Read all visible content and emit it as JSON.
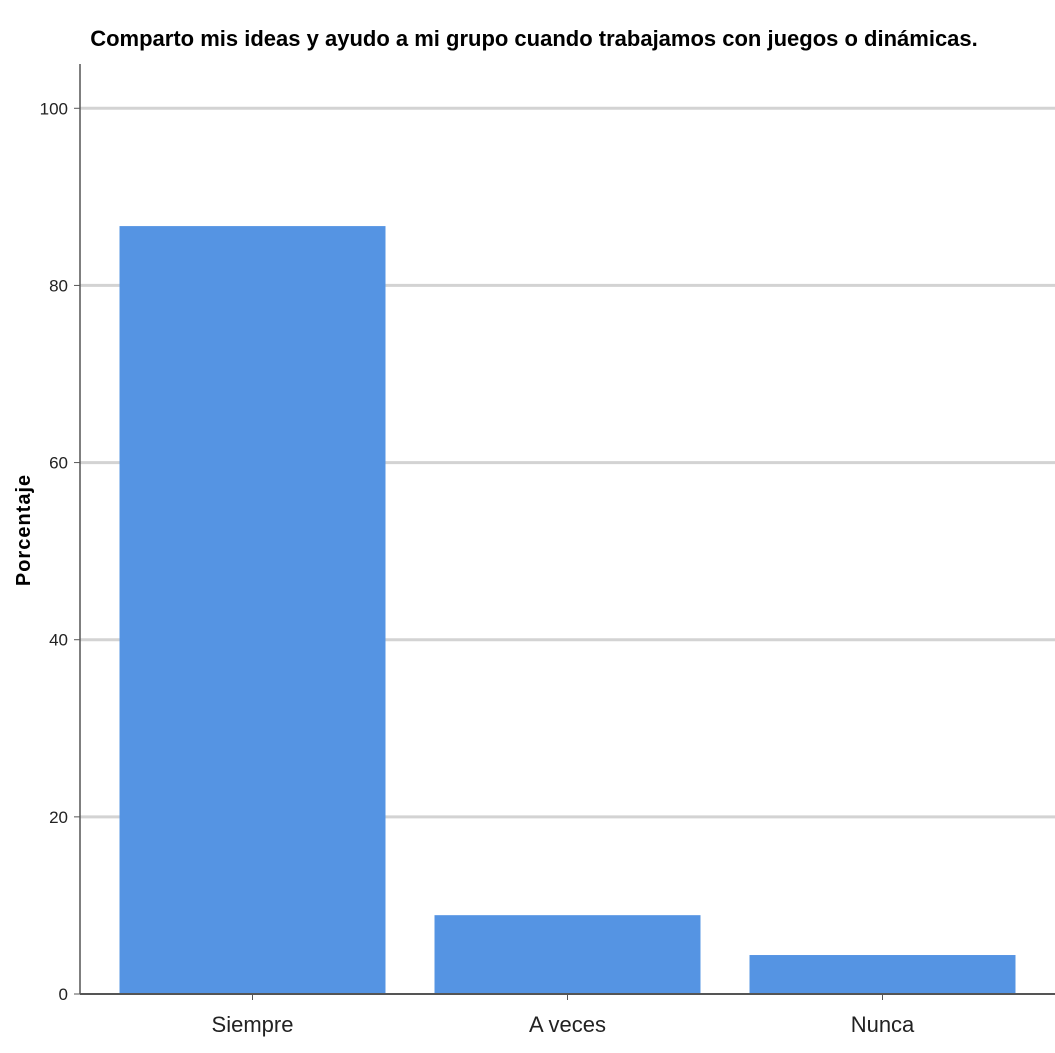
{
  "chart_data": {
    "type": "bar",
    "title": "Comparto mis ideas y ayudo a mi grupo cuando trabajamos con juegos o dinámicas.",
    "xlabel": "",
    "ylabel": "Porcentaje",
    "categories": [
      "Siempre",
      "A veces",
      "Nunca"
    ],
    "values": [
      86.7,
      8.9,
      4.4
    ],
    "ylim": [
      0,
      105
    ],
    "yticks": [
      0,
      20,
      40,
      60,
      80,
      100
    ],
    "grid": true,
    "bar_color": "#5594e3",
    "grid_color": "#d3d3d3",
    "axis_color": "#555555"
  }
}
